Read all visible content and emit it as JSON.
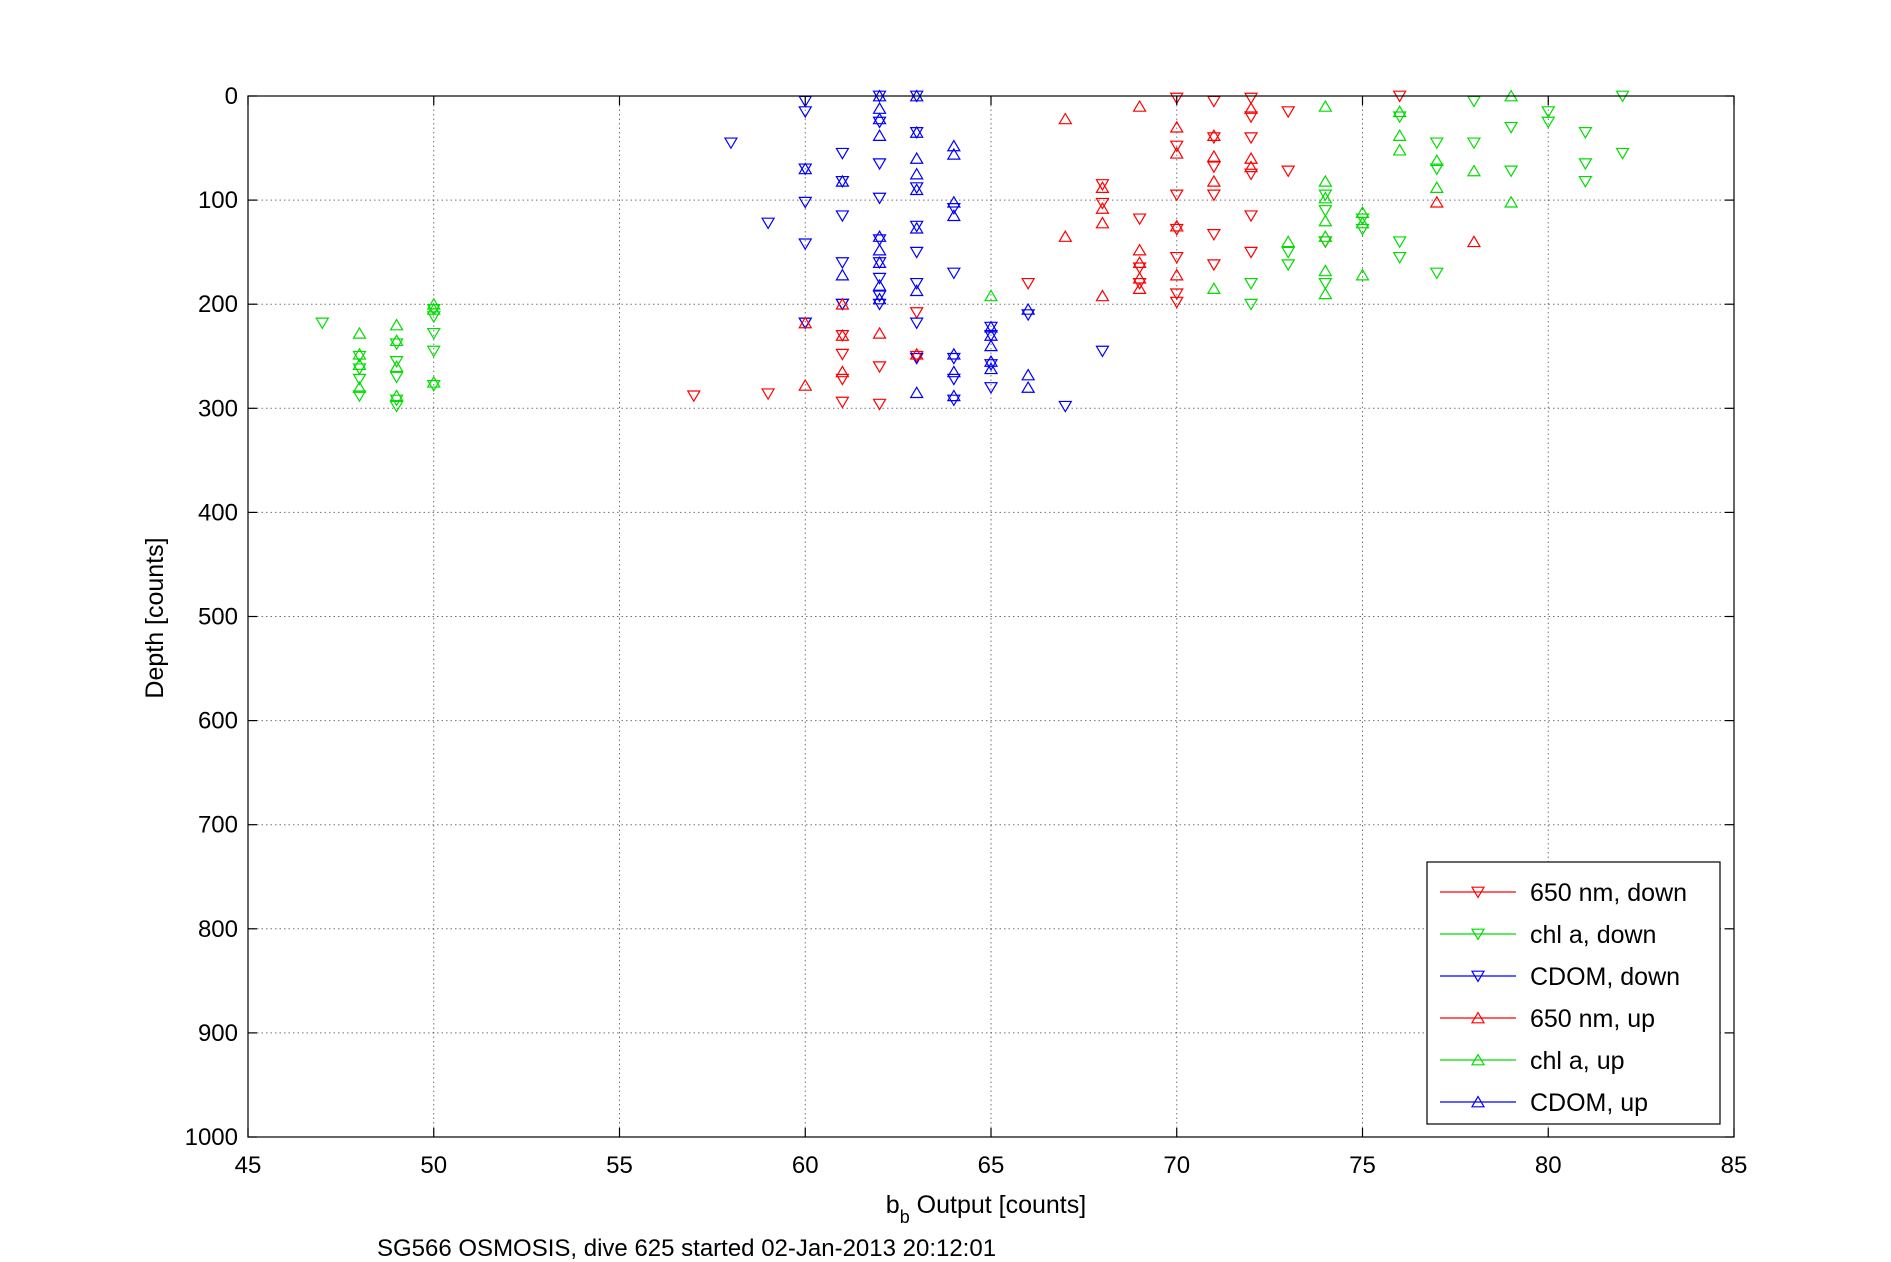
{
  "chart_data": {
    "type": "scatter",
    "xlabel_main": "b",
    "xlabel_sub": "b",
    "xlabel_rest": " Output [counts]",
    "ylabel": "Depth [counts]",
    "caption": "SG566 OSMOSIS, dive 625 started 02-Jan-2013 20:12:01",
    "xlim": [
      45,
      85
    ],
    "ylim": [
      0,
      1000
    ],
    "y_reversed": true,
    "grid": true,
    "legend_position": "bottom-right",
    "xticks": [
      "45",
      "50",
      "55",
      "60",
      "65",
      "70",
      "75",
      "80",
      "85"
    ],
    "yticks": [
      "0",
      "100",
      "200",
      "300",
      "400",
      "500",
      "600",
      "700",
      "800",
      "900",
      "1000"
    ],
    "series": [
      {
        "name": "650 nm, down",
        "color": "#ff0000",
        "marker": "triangle-down",
        "points": [
          [
            57,
            288
          ],
          [
            59,
            286
          ],
          [
            60,
            218
          ],
          [
            61,
            294
          ],
          [
            61,
            272
          ],
          [
            61,
            248
          ],
          [
            61,
            230
          ],
          [
            61,
            200
          ],
          [
            62,
            296
          ],
          [
            62,
            260
          ],
          [
            63,
            250
          ],
          [
            63,
            208
          ],
          [
            66,
            180
          ],
          [
            68,
            85
          ],
          [
            68,
            103
          ],
          [
            69,
            118
          ],
          [
            69,
            165
          ],
          [
            69,
            180
          ],
          [
            70,
            2
          ],
          [
            70,
            48
          ],
          [
            70,
            95
          ],
          [
            70,
            128
          ],
          [
            70,
            155
          ],
          [
            70,
            190
          ],
          [
            70,
            198
          ],
          [
            71,
            5
          ],
          [
            71,
            40
          ],
          [
            71,
            68
          ],
          [
            71,
            95
          ],
          [
            71,
            133
          ],
          [
            71,
            162
          ],
          [
            72,
            2
          ],
          [
            72,
            20
          ],
          [
            72,
            40
          ],
          [
            72,
            75
          ],
          [
            72,
            115
          ],
          [
            72,
            150
          ],
          [
            73,
            15
          ],
          [
            73,
            72
          ],
          [
            74,
            140
          ],
          [
            76,
            0
          ]
        ]
      },
      {
        "name": "chl a, down",
        "color": "#00dd00",
        "marker": "triangle-down",
        "points": [
          [
            47,
            218
          ],
          [
            48,
            250
          ],
          [
            48,
            262
          ],
          [
            48,
            272
          ],
          [
            48,
            288
          ],
          [
            49,
            238
          ],
          [
            49,
            255
          ],
          [
            49,
            270
          ],
          [
            49,
            292
          ],
          [
            49,
            298
          ],
          [
            50,
            205
          ],
          [
            50,
            212
          ],
          [
            50,
            228
          ],
          [
            50,
            245
          ],
          [
            50,
            278
          ],
          [
            72,
            180
          ],
          [
            72,
            200
          ],
          [
            73,
            150
          ],
          [
            73,
            162
          ],
          [
            74,
            95
          ],
          [
            74,
            110
          ],
          [
            74,
            140
          ],
          [
            74,
            180
          ],
          [
            75,
            118
          ],
          [
            75,
            128
          ],
          [
            76,
            20
          ],
          [
            76,
            140
          ],
          [
            76,
            155
          ],
          [
            77,
            45
          ],
          [
            77,
            70
          ],
          [
            77,
            170
          ],
          [
            78,
            5
          ],
          [
            78,
            45
          ],
          [
            79,
            30
          ],
          [
            79,
            72
          ],
          [
            80,
            15
          ],
          [
            80,
            25
          ],
          [
            81,
            35
          ],
          [
            81,
            65
          ],
          [
            81,
            82
          ],
          [
            82,
            0
          ],
          [
            82,
            55
          ]
        ]
      },
      {
        "name": "CDOM, down",
        "color": "#0000ff",
        "marker": "triangle-down",
        "points": [
          [
            58,
            45
          ],
          [
            59,
            122
          ],
          [
            60,
            5
          ],
          [
            60,
            15
          ],
          [
            60,
            70
          ],
          [
            60,
            102
          ],
          [
            60,
            142
          ],
          [
            60,
            218
          ],
          [
            61,
            55
          ],
          [
            61,
            82
          ],
          [
            61,
            115
          ],
          [
            61,
            160
          ],
          [
            61,
            200
          ],
          [
            62,
            0
          ],
          [
            62,
            25
          ],
          [
            62,
            65
          ],
          [
            62,
            98
          ],
          [
            62,
            138
          ],
          [
            62,
            160
          ],
          [
            62,
            175
          ],
          [
            62,
            192
          ],
          [
            62,
            200
          ],
          [
            63,
            0
          ],
          [
            63,
            35
          ],
          [
            63,
            88
          ],
          [
            63,
            125
          ],
          [
            63,
            150
          ],
          [
            63,
            180
          ],
          [
            63,
            218
          ],
          [
            63,
            252
          ],
          [
            64,
            108
          ],
          [
            64,
            170
          ],
          [
            64,
            252
          ],
          [
            64,
            272
          ],
          [
            64,
            292
          ],
          [
            65,
            222
          ],
          [
            65,
            230
          ],
          [
            65,
            258
          ],
          [
            65,
            280
          ],
          [
            66,
            210
          ],
          [
            67,
            298
          ],
          [
            68,
            245
          ]
        ]
      },
      {
        "name": "650 nm, up",
        "color": "#ff0000",
        "marker": "triangle-up",
        "points": [
          [
            60,
            218
          ],
          [
            60,
            278
          ],
          [
            61,
            200
          ],
          [
            61,
            230
          ],
          [
            61,
            265
          ],
          [
            62,
            228
          ],
          [
            63,
            248
          ],
          [
            67,
            22
          ],
          [
            67,
            135
          ],
          [
            68,
            88
          ],
          [
            68,
            108
          ],
          [
            68,
            122
          ],
          [
            68,
            192
          ],
          [
            69,
            10
          ],
          [
            69,
            148
          ],
          [
            69,
            160
          ],
          [
            69,
            175
          ],
          [
            69,
            185
          ],
          [
            70,
            30
          ],
          [
            70,
            55
          ],
          [
            70,
            125
          ],
          [
            70,
            172
          ],
          [
            71,
            38
          ],
          [
            71,
            58
          ],
          [
            71,
            82
          ],
          [
            72,
            12
          ],
          [
            72,
            60
          ],
          [
            72,
            68
          ],
          [
            77,
            102
          ],
          [
            78,
            140
          ]
        ]
      },
      {
        "name": "chl a, up",
        "color": "#00dd00",
        "marker": "triangle-up",
        "points": [
          [
            48,
            228
          ],
          [
            48,
            248
          ],
          [
            48,
            258
          ],
          [
            48,
            280
          ],
          [
            49,
            220
          ],
          [
            49,
            235
          ],
          [
            49,
            260
          ],
          [
            49,
            288
          ],
          [
            50,
            200
          ],
          [
            50,
            205
          ],
          [
            50,
            275
          ],
          [
            65,
            192
          ],
          [
            71,
            185
          ],
          [
            73,
            140
          ],
          [
            74,
            10
          ],
          [
            74,
            82
          ],
          [
            74,
            98
          ],
          [
            74,
            120
          ],
          [
            74,
            135
          ],
          [
            74,
            168
          ],
          [
            74,
            190
          ],
          [
            75,
            112
          ],
          [
            75,
            122
          ],
          [
            75,
            172
          ],
          [
            76,
            15
          ],
          [
            76,
            38
          ],
          [
            76,
            52
          ],
          [
            77,
            62
          ],
          [
            77,
            88
          ],
          [
            78,
            72
          ],
          [
            79,
            0
          ],
          [
            79,
            102
          ]
        ]
      },
      {
        "name": "CDOM, up",
        "color": "#0000ff",
        "marker": "triangle-up",
        "points": [
          [
            60,
            70
          ],
          [
            61,
            82
          ],
          [
            61,
            172
          ],
          [
            62,
            0
          ],
          [
            62,
            12
          ],
          [
            62,
            22
          ],
          [
            62,
            38
          ],
          [
            62,
            135
          ],
          [
            62,
            148
          ],
          [
            62,
            160
          ],
          [
            62,
            182
          ],
          [
            62,
            195
          ],
          [
            63,
            0
          ],
          [
            63,
            35
          ],
          [
            63,
            60
          ],
          [
            63,
            75
          ],
          [
            63,
            90
          ],
          [
            63,
            127
          ],
          [
            63,
            187
          ],
          [
            63,
            285
          ],
          [
            64,
            48
          ],
          [
            64,
            56
          ],
          [
            64,
            102
          ],
          [
            64,
            115
          ],
          [
            64,
            248
          ],
          [
            64,
            265
          ],
          [
            64,
            288
          ],
          [
            65,
            222
          ],
          [
            65,
            230
          ],
          [
            65,
            240
          ],
          [
            65,
            255
          ],
          [
            65,
            262
          ],
          [
            66,
            205
          ],
          [
            66,
            268
          ],
          [
            66,
            280
          ]
        ]
      }
    ]
  }
}
